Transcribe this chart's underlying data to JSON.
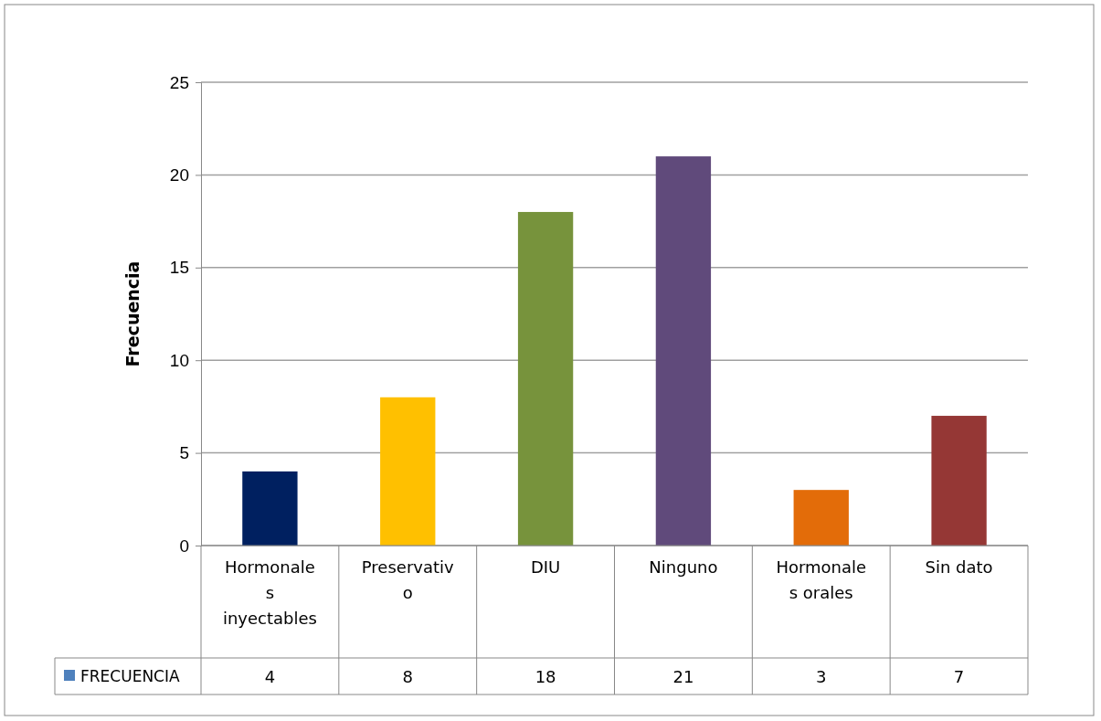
{
  "chart_data": {
    "type": "bar",
    "ylabel": "Frecuencia",
    "categories": [
      "Hormonales inyectables",
      "Preservativo",
      "DIU",
      "Ninguno",
      "Hormonales orales",
      "Sin dato"
    ],
    "series": [
      {
        "name": "FRECUENCIA",
        "color": "#4f81bd",
        "colors": [
          "#002060",
          "#ffc000",
          "#77933c",
          "#604a7b",
          "#e36c09",
          "#953735"
        ],
        "values": [
          4,
          8,
          18,
          21,
          3,
          7
        ]
      }
    ],
    "ylim": [
      0,
      25
    ],
    "yticks": [
      0,
      5,
      10,
      15,
      20,
      25
    ],
    "grid": "y",
    "legend": "bottom",
    "data_labels": true
  }
}
